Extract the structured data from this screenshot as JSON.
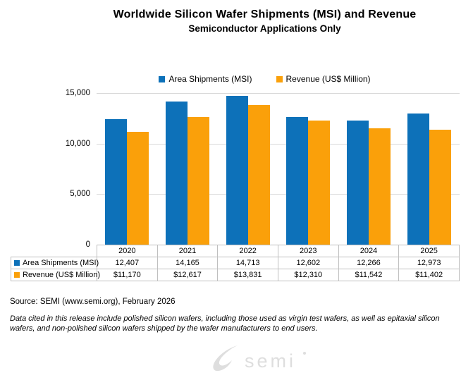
{
  "title": "Worldwide Silicon Wafer Shipments (MSI) and Revenue",
  "subtitle": "Semiconductor Applications Only",
  "colors": {
    "shipments_blue": "#0d71b9",
    "revenue_orange": "#faa00a",
    "gridline": "#d9d9d9",
    "table_border": "#bfbfbf",
    "logo_gray": "#dedede"
  },
  "legend": [
    {
      "label": "Area Shipments (MSI)",
      "color": "#0d71b9"
    },
    {
      "label": "Revenue (US$ Million)",
      "color": "#faa00a"
    }
  ],
  "chart_data": {
    "type": "bar",
    "title": "Worldwide Silicon Wafer Shipments (MSI) and Revenue",
    "subtitle": "Semiconductor Applications Only",
    "xlabel": "",
    "ylabel": "",
    "categories": [
      "2020",
      "2021",
      "2022",
      "2023",
      "2024",
      "2025"
    ],
    "series": [
      {
        "name": "Area Shipments (MSI)",
        "color": "#0d71b9",
        "values": [
          12407,
          14165,
          14713,
          12602,
          12266,
          12973
        ],
        "display": [
          "12,407",
          "14,165",
          "14,713",
          "12,602",
          "12,266",
          "12,973"
        ]
      },
      {
        "name": "Revenue (US$ Million)",
        "color": "#faa00a",
        "values": [
          11170,
          12617,
          13831,
          12310,
          11542,
          11402
        ],
        "display": [
          "$11,170",
          "$12,617",
          "$13,831",
          "$12,310",
          "$11,542",
          "$11,402"
        ]
      }
    ],
    "ylim": [
      0,
      15000
    ],
    "y_ticks": [
      {
        "value": 15000,
        "label": "15,000"
      },
      {
        "value": 10000,
        "label": "10,000"
      },
      {
        "value": 5000,
        "label": "5,000"
      },
      {
        "value": 0,
        "label": "0"
      }
    ],
    "grid": true,
    "legend_position": "top",
    "data_table_below_axis": true
  },
  "source_note": "Source: SEMI (www.semi.org), February 2026",
  "disclaimer": "Data cited in this release include polished silicon wafers, including those used as virgin test wafers, as well as epitaxial silicon wafers, and non-polished silicon wafers shipped by the wafer manufacturers to end users.",
  "footer": {
    "logo_text": "semi"
  }
}
